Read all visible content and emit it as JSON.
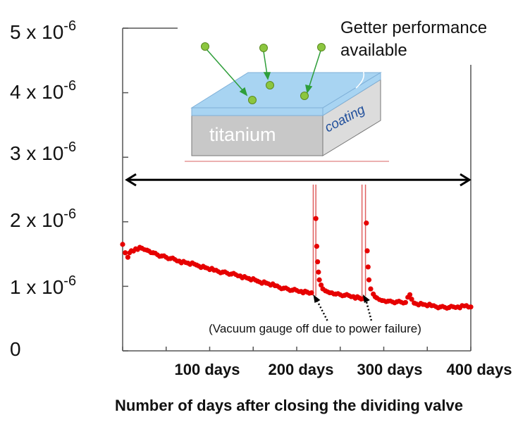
{
  "chart_data": {
    "type": "scatter",
    "title": "",
    "xlabel": "Number of days after closing the dividing valve",
    "ylabel": "",
    "y_tick_labels": [
      {
        "value": 0,
        "mantissa": "0",
        "exponent": ""
      },
      {
        "value": 1e-06,
        "mantissa": "1 x 10",
        "exponent": "-6"
      },
      {
        "value": 2e-06,
        "mantissa": "2 x 10",
        "exponent": "-6"
      },
      {
        "value": 3e-06,
        "mantissa": "3 x 10",
        "exponent": "-6"
      },
      {
        "value": 4e-06,
        "mantissa": "4 x 10",
        "exponent": "-6"
      },
      {
        "value": 5e-06,
        "mantissa": "5 x 10",
        "exponent": "-6"
      }
    ],
    "x_tick_labels": [
      {
        "value": 100,
        "label": "100 days"
      },
      {
        "value": 200,
        "label": "200 days"
      },
      {
        "value": 300,
        "label": "300 days"
      },
      {
        "value": 400,
        "label": "400 days"
      }
    ],
    "xlim": [
      0,
      400
    ],
    "ylim": [
      0,
      5e-06
    ],
    "series": [
      {
        "color": "#e60000",
        "points": [
          [
            0,
            1.65e-06
          ],
          [
            3,
            1.52e-06
          ],
          [
            6,
            1.45e-06
          ],
          [
            10,
            1.55e-06
          ],
          [
            15,
            1.58e-06
          ],
          [
            22,
            1.59e-06
          ],
          [
            28,
            1.56e-06
          ],
          [
            35,
            1.52e-06
          ],
          [
            45,
            1.47e-06
          ],
          [
            55,
            1.43e-06
          ],
          [
            65,
            1.39e-06
          ],
          [
            75,
            1.36e-06
          ],
          [
            85,
            1.33e-06
          ],
          [
            95,
            1.29e-06
          ],
          [
            105,
            1.25e-06
          ],
          [
            115,
            1.22e-06
          ],
          [
            125,
            1.19e-06
          ],
          [
            135,
            1.16e-06
          ],
          [
            145,
            1.12e-06
          ],
          [
            155,
            1.08e-06
          ],
          [
            165,
            1.05e-06
          ],
          [
            175,
            1.01e-06
          ],
          [
            185,
            9.7e-07
          ],
          [
            195,
            9.4e-07
          ],
          [
            205,
            9.2e-07
          ],
          [
            212,
            9.1e-07
          ],
          [
            217,
            9e-07
          ],
          [
            222,
            2.05e-06
          ],
          [
            223,
            1.62e-06
          ],
          [
            224,
            1.38e-06
          ],
          [
            225,
            1.22e-06
          ],
          [
            226,
            1.1e-06
          ],
          [
            228,
            1.02e-06
          ],
          [
            230,
            9.6e-07
          ],
          [
            233,
            9.3e-07
          ],
          [
            238,
            9e-07
          ],
          [
            245,
            8.8e-07
          ],
          [
            255,
            8.6e-07
          ],
          [
            265,
            8.4e-07
          ],
          [
            272,
            8.2e-07
          ],
          [
            276,
            8.1e-07
          ],
          [
            280,
            1.98e-06
          ],
          [
            281,
            1.55e-06
          ],
          [
            282,
            1.3e-06
          ],
          [
            283,
            1.1e-06
          ],
          [
            285,
            9.6e-07
          ],
          [
            288,
            8.8e-07
          ],
          [
            292,
            8.2e-07
          ],
          [
            298,
            7.8e-07
          ],
          [
            305,
            7.7e-07
          ],
          [
            315,
            7.6e-07
          ],
          [
            325,
            7.5e-07
          ],
          [
            330,
            8.7e-07
          ],
          [
            332,
            8e-07
          ],
          [
            335,
            7.4e-07
          ],
          [
            345,
            7.2e-07
          ],
          [
            355,
            7e-07
          ],
          [
            365,
            6.8e-07
          ],
          [
            375,
            6.7e-07
          ],
          [
            385,
            6.8e-07
          ],
          [
            395,
            7e-07
          ],
          [
            400,
            6.8e-07
          ]
        ]
      }
    ],
    "spikes": [
      {
        "x": 219,
        "color": "#e06060"
      },
      {
        "x": 222,
        "color": "#e06060"
      },
      {
        "x": 275,
        "color": "#e06060"
      },
      {
        "x": 279,
        "color": "#e06060"
      }
    ],
    "range_arrow": {
      "x_from": 0,
      "x_to": 400,
      "y": 2.65e-06
    },
    "annotation": "(Vacuum gauge off due to power failure)",
    "annotation_arrows_x": [
      219,
      276
    ],
    "inset": {
      "title_line1": "Getter performance",
      "title_line2": "available",
      "substrate_label": "titanium",
      "coating_label": "coating",
      "molecule_color": "#8cc63f",
      "coating_color": "#a8d4f2",
      "substrate_color": "#c8c8c8"
    }
  }
}
